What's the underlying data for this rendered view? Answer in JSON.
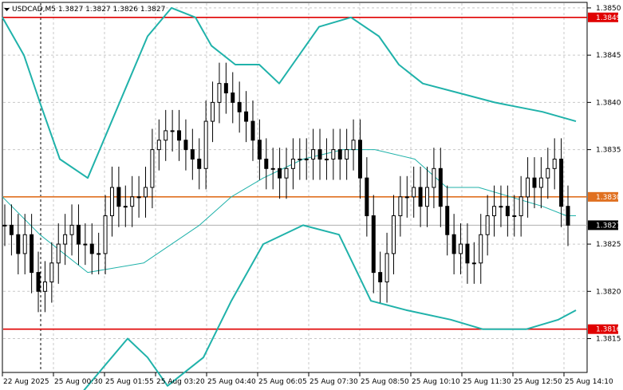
{
  "header": {
    "symbol_menu_icon": "dropdown-triangle-icon",
    "title": "USDCAD,M5  1.3827 1.3827 1.3826 1.3827"
  },
  "colors": {
    "background": "#ffffff",
    "grid": "#c8c8c8",
    "candle": "#000000",
    "bollinger": "#20b2aa",
    "level_red": "#e00000",
    "level_orange": "#e07020",
    "current_price_line": "#b0b0b0"
  },
  "price_axis": {
    "ticks": [
      "1.3850",
      "1.3845",
      "1.3840",
      "1.3835",
      "1.3825",
      "1.3820",
      "1.3815"
    ],
    "tick_values": [
      1.385,
      1.3845,
      1.384,
      1.3835,
      1.3825,
      1.382,
      1.3815
    ],
    "range": [
      1.38115,
      1.38505
    ]
  },
  "time_axis": {
    "labels": [
      "22 Aug 2025",
      "25 Aug 00:30",
      "25 Aug 01:55",
      "25 Aug 03:20",
      "25 Aug 04:40",
      "25 Aug 06:05",
      "25 Aug 07:30",
      "25 Aug 08:50",
      "25 Aug 10:10",
      "25 Aug 11:30",
      "25 Aug 12:50",
      "25 Aug 14:10"
    ]
  },
  "levels": [
    {
      "label": "1.3849",
      "value": 1.3849,
      "kind": "red"
    },
    {
      "label": "1.3830",
      "value": 1.383,
      "kind": "orange"
    },
    {
      "label": "1.3816",
      "value": 1.3816,
      "kind": "red"
    }
  ],
  "current_price": {
    "label": "1.3827",
    "value": 1.3827
  },
  "chart_data": {
    "type": "line",
    "title": "USDCAD,M5",
    "ylim": [
      1.38115,
      1.38505
    ],
    "series": [
      {
        "values": [
          1.3827,
          1.3826,
          1.3824,
          1.3826,
          1.3822,
          1.382,
          1.3821,
          1.3823,
          1.3825,
          1.3826,
          1.3827,
          1.3825,
          1.3825,
          1.3824,
          1.3824,
          1.3828,
          1.3831,
          1.3829,
          1.3829,
          1.383,
          1.383,
          1.3831,
          1.3835,
          1.3836,
          1.3837,
          1.3837,
          1.3836,
          1.3835,
          1.3834,
          1.3833,
          1.3838,
          1.384,
          1.3842,
          1.3841,
          1.384,
          1.3839,
          1.3838,
          1.3836,
          1.3834,
          1.3833,
          1.3833,
          1.3832,
          1.3833,
          1.3834,
          1.3834,
          1.3834,
          1.3835,
          1.3834,
          1.3834,
          1.3835,
          1.3834,
          1.3835,
          1.3836,
          1.3832,
          1.3828,
          1.3822,
          1.3821,
          1.3824,
          1.3828,
          1.383,
          1.383,
          1.3831,
          1.3829,
          1.3831,
          1.3833,
          1.3829,
          1.3826,
          1.3824,
          1.3825,
          1.3823,
          1.3823,
          1.3826,
          1.3828,
          1.3829,
          1.3829,
          1.3828,
          1.3828,
          1.383,
          1.3832,
          1.3831,
          1.3832,
          1.3833,
          1.3834,
          1.3829,
          1.3827
        ]
      },
      {
        "values": [
          1.3849,
          1.3845,
          1.384,
          1.3834,
          1.3832,
          1.3836,
          1.3842,
          1.3847,
          1.385,
          1.3849,
          1.3846,
          1.3844,
          1.3844,
          1.3842,
          1.3848,
          1.3849,
          1.3847,
          1.3844,
          1.3842,
          1.3841,
          1.384,
          1.3839,
          1.3838
        ]
      },
      {
        "values": [
          1.383,
          1.3826,
          1.3822,
          1.3823,
          1.3827,
          1.383,
          1.3832,
          1.3834,
          1.3835,
          1.3835,
          1.3834,
          1.3831,
          1.3831,
          1.383,
          1.3829,
          1.3828,
          1.3828
        ]
      },
      {
        "values": [
          1.3808,
          1.3811,
          1.3815,
          1.3813,
          1.381,
          1.3813,
          1.3819,
          1.3825,
          1.3827,
          1.3826,
          1.3819,
          1.3818,
          1.3817,
          1.3816,
          1.3816,
          1.3817,
          1.3818
        ]
      }
    ]
  }
}
